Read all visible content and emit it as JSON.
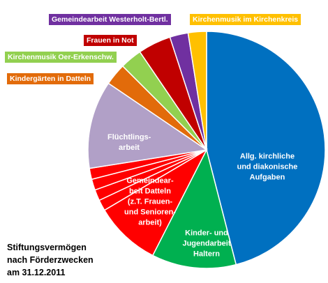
{
  "chart_data": {
    "type": "pie",
    "title_lines": [
      "Stiftungsvermögen",
      "nach Förderzwecken",
      "am 31.12.2011"
    ],
    "categories": [
      "Allg. kirchliche und diakonische Aufgaben",
      "Kinder- und Jugendarbeit Haltern",
      "Gemeindear-beit Datteln (z.T. Frauen- und Senioren-arbeit)",
      null,
      null,
      null,
      null,
      "Flüchtlings-arbeit",
      "Kindergärten in Datteln",
      "Kirchenmusik Oer-Erkenschw.",
      "Frauen in Not",
      "Gemeindearbeit Westerholt-Bertl.",
      "Kirchenmusik im Kirchenkreis"
    ],
    "values": [
      46,
      11.5,
      9,
      1.5,
      1.5,
      1.5,
      1.5,
      12,
      3,
      3,
      4.5,
      2.5,
      2.5
    ],
    "colors": [
      "#0070c0",
      "#00b050",
      "#ff0000",
      "#ff0000",
      "#ff0000",
      "#ff0000",
      "#ff0000",
      "#b1a0c7",
      "#e26b0a",
      "#92d050",
      "#c00000",
      "#7030a0",
      "#ffc000"
    ]
  }
}
